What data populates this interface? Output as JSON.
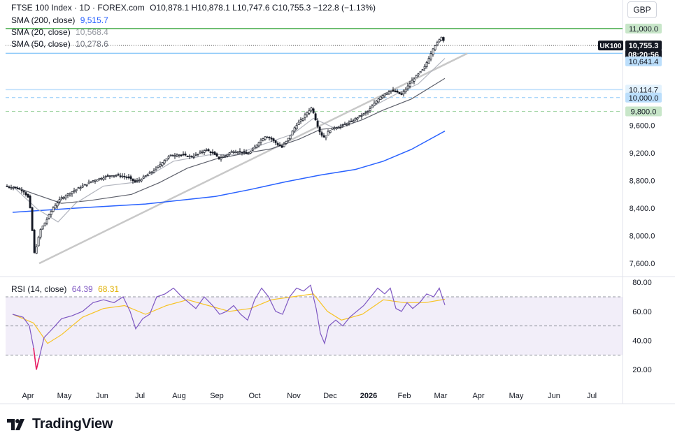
{
  "header": {
    "title": "FTSE 100 Index · 1D · FOREX.com",
    "ohlc": "O10,878.1  H10,878.1  L10,747.6  C10,755.3  −122.8 (−1.13%)",
    "currency": "GBP"
  },
  "indicators": [
    {
      "label": "SMA (200, close)",
      "value": "9,515.7",
      "color": "#2962ff"
    },
    {
      "label": "SMA (20, close)",
      "value": "10,568.4",
      "color": "#b2b5be"
    },
    {
      "label": "SMA (50, close)",
      "value": "10,278.6",
      "color": "#787b86"
    }
  ],
  "rsi_legend": {
    "label": "RSI (14, close)",
    "rsi": "64.39",
    "ma": "68.31",
    "rsi_color": "#7e57c2",
    "ma_color": "#f7c325"
  },
  "price_axis": {
    "ticks": [
      "11,000.0",
      "9,600.0",
      "9,200.0",
      "8,800.0",
      "8,400.0",
      "8,000.0",
      "7,600.0"
    ],
    "tick_values": [
      11000,
      9600,
      9200,
      8800,
      8400,
      8000,
      7600
    ],
    "range": [
      7450,
      11130
    ],
    "labels": [
      {
        "text": "11,000.0",
        "value": 11000,
        "bg": "#c8e6c9",
        "color": "#131722"
      },
      {
        "text": "10,755.3",
        "value": 10755.3,
        "bg": "#131722",
        "color": "#ffffff"
      },
      {
        "text": "08:20:56",
        "value": 10625,
        "bg": "#131722",
        "color": "#ffffff"
      },
      {
        "text": "10,641.4",
        "value": 10525,
        "bg": "#bbdefb",
        "color": "#131722"
      },
      {
        "text": "10,114.7",
        "value": 10114.7,
        "bg": "#e3f2fd",
        "color": "#131722"
      },
      {
        "text": "10,000.0",
        "value": 10000,
        "bg": "#bbdefb",
        "color": "#131722"
      },
      {
        "text": "9,800.0",
        "value": 9800,
        "bg": "#c8e6c9",
        "color": "#131722"
      }
    ],
    "symbol_badge": "UK100"
  },
  "rsi_axis": {
    "ticks": [
      "80.00",
      "60.00",
      "40.00",
      "20.00"
    ],
    "tick_values": [
      80,
      60,
      40,
      20
    ],
    "range": [
      10,
      82
    ]
  },
  "time_axis": {
    "labels": [
      "Apr",
      "May",
      "Jun",
      "Jul",
      "Aug",
      "Sep",
      "Oct",
      "Nov",
      "Dec",
      "2026",
      "Feb",
      "Mar",
      "Apr",
      "May",
      "Jun",
      "Jul"
    ]
  },
  "branding": {
    "name": "TradingView"
  },
  "chart_data": {
    "type": "candlestick",
    "symbol": "FTSE 100 Index",
    "interval": "1D",
    "ylim": [
      7450,
      11130
    ],
    "price_path": [
      {
        "x": 0,
        "y": 8720
      },
      {
        "x": 12,
        "y": 8700
      },
      {
        "x": 25,
        "y": 8660
      },
      {
        "x": 33,
        "y": 8540
      },
      {
        "x": 37,
        "y": 8250
      },
      {
        "x": 40,
        "y": 7720
      },
      {
        "x": 44,
        "y": 7850
      },
      {
        "x": 50,
        "y": 8090
      },
      {
        "x": 58,
        "y": 8220
      },
      {
        "x": 68,
        "y": 8410
      },
      {
        "x": 80,
        "y": 8550
      },
      {
        "x": 95,
        "y": 8640
      },
      {
        "x": 110,
        "y": 8720
      },
      {
        "x": 125,
        "y": 8800
      },
      {
        "x": 140,
        "y": 8850
      },
      {
        "x": 152,
        "y": 8880
      },
      {
        "x": 165,
        "y": 8870
      },
      {
        "x": 175,
        "y": 8840
      },
      {
        "x": 185,
        "y": 8780
      },
      {
        "x": 195,
        "y": 8830
      },
      {
        "x": 205,
        "y": 8900
      },
      {
        "x": 215,
        "y": 8970
      },
      {
        "x": 225,
        "y": 9080
      },
      {
        "x": 235,
        "y": 9160
      },
      {
        "x": 245,
        "y": 9180
      },
      {
        "x": 255,
        "y": 9160
      },
      {
        "x": 265,
        "y": 9150
      },
      {
        "x": 275,
        "y": 9180
      },
      {
        "x": 285,
        "y": 9250
      },
      {
        "x": 295,
        "y": 9200
      },
      {
        "x": 305,
        "y": 9120
      },
      {
        "x": 315,
        "y": 9170
      },
      {
        "x": 325,
        "y": 9230
      },
      {
        "x": 335,
        "y": 9220
      },
      {
        "x": 345,
        "y": 9180
      },
      {
        "x": 352,
        "y": 9230
      },
      {
        "x": 362,
        "y": 9360
      },
      {
        "x": 372,
        "y": 9450
      },
      {
        "x": 380,
        "y": 9400
      },
      {
        "x": 388,
        "y": 9330
      },
      {
        "x": 395,
        "y": 9280
      },
      {
        "x": 405,
        "y": 9420
      },
      {
        "x": 415,
        "y": 9600
      },
      {
        "x": 425,
        "y": 9700
      },
      {
        "x": 432,
        "y": 9800
      },
      {
        "x": 438,
        "y": 9860
      },
      {
        "x": 444,
        "y": 9650
      },
      {
        "x": 450,
        "y": 9480
      },
      {
        "x": 456,
        "y": 9420
      },
      {
        "x": 462,
        "y": 9520
      },
      {
        "x": 470,
        "y": 9570
      },
      {
        "x": 478,
        "y": 9580
      },
      {
        "x": 486,
        "y": 9620
      },
      {
        "x": 494,
        "y": 9650
      },
      {
        "x": 502,
        "y": 9710
      },
      {
        "x": 510,
        "y": 9750
      },
      {
        "x": 518,
        "y": 9800
      },
      {
        "x": 526,
        "y": 9900
      },
      {
        "x": 534,
        "y": 10000
      },
      {
        "x": 542,
        "y": 10060
      },
      {
        "x": 550,
        "y": 10100
      },
      {
        "x": 558,
        "y": 10080
      },
      {
        "x": 566,
        "y": 10040
      },
      {
        "x": 574,
        "y": 10150
      },
      {
        "x": 582,
        "y": 10260
      },
      {
        "x": 590,
        "y": 10340
      },
      {
        "x": 598,
        "y": 10420
      },
      {
        "x": 606,
        "y": 10600
      },
      {
        "x": 612,
        "y": 10740
      },
      {
        "x": 618,
        "y": 10800
      },
      {
        "x": 624,
        "y": 10900
      },
      {
        "x": 628,
        "y": 10755
      }
    ],
    "sma200": [
      {
        "x": 10,
        "y": 8340
      },
      {
        "x": 100,
        "y": 8400
      },
      {
        "x": 200,
        "y": 8460
      },
      {
        "x": 300,
        "y": 8570
      },
      {
        "x": 350,
        "y": 8670
      },
      {
        "x": 400,
        "y": 8780
      },
      {
        "x": 450,
        "y": 8880
      },
      {
        "x": 500,
        "y": 8960
      },
      {
        "x": 540,
        "y": 9080
      },
      {
        "x": 580,
        "y": 9250
      },
      {
        "x": 628,
        "y": 9515.7
      }
    ],
    "sma50": [
      {
        "x": 10,
        "y": 8720
      },
      {
        "x": 40,
        "y": 8610
      },
      {
        "x": 80,
        "y": 8470
      },
      {
        "x": 120,
        "y": 8510
      },
      {
        "x": 180,
        "y": 8600
      },
      {
        "x": 220,
        "y": 8770
      },
      {
        "x": 260,
        "y": 8980
      },
      {
        "x": 300,
        "y": 9110
      },
      {
        "x": 340,
        "y": 9190
      },
      {
        "x": 380,
        "y": 9260
      },
      {
        "x": 420,
        "y": 9400
      },
      {
        "x": 450,
        "y": 9540
      },
      {
        "x": 480,
        "y": 9570
      },
      {
        "x": 510,
        "y": 9680
      },
      {
        "x": 540,
        "y": 9820
      },
      {
        "x": 580,
        "y": 9980
      },
      {
        "x": 628,
        "y": 10278.6
      }
    ],
    "sma20": [
      {
        "x": 10,
        "y": 8720
      },
      {
        "x": 45,
        "y": 8390
      },
      {
        "x": 75,
        "y": 8200
      },
      {
        "x": 100,
        "y": 8470
      },
      {
        "x": 140,
        "y": 8720
      },
      {
        "x": 190,
        "y": 8780
      },
      {
        "x": 240,
        "y": 9080
      },
      {
        "x": 290,
        "y": 9170
      },
      {
        "x": 330,
        "y": 9180
      },
      {
        "x": 370,
        "y": 9330
      },
      {
        "x": 410,
        "y": 9470
      },
      {
        "x": 440,
        "y": 9700
      },
      {
        "x": 470,
        "y": 9560
      },
      {
        "x": 500,
        "y": 9680
      },
      {
        "x": 530,
        "y": 9900
      },
      {
        "x": 560,
        "y": 10060
      },
      {
        "x": 590,
        "y": 10200
      },
      {
        "x": 628,
        "y": 10568.4
      }
    ],
    "trendline": [
      {
        "x": 48,
        "y": 7600
      },
      {
        "x": 660,
        "y": 10640
      }
    ],
    "horizontal_levels": [
      {
        "value": 11000,
        "color": "#4caf50",
        "style": "solid"
      },
      {
        "value": 10755.3,
        "color": "#555555",
        "style": "dotted"
      },
      {
        "value": 10641.4,
        "color": "#90caf9",
        "style": "solid"
      },
      {
        "value": 10114.7,
        "color": "#bbdefb",
        "style": "solid"
      },
      {
        "value": 10000,
        "color": "#90caf9",
        "style": "dashed"
      },
      {
        "value": 9800,
        "color": "#a5d6a7",
        "style": "dashed"
      }
    ],
    "rsi": {
      "ylim": [
        10,
        82
      ],
      "bands": [
        70,
        50,
        30
      ],
      "values": [
        {
          "x": 10,
          "y": 58
        },
        {
          "x": 25,
          "y": 56
        },
        {
          "x": 34,
          "y": 50
        },
        {
          "x": 40,
          "y": 35
        },
        {
          "x": 44,
          "y": 20
        },
        {
          "x": 48,
          "y": 28
        },
        {
          "x": 55,
          "y": 42
        },
        {
          "x": 65,
          "y": 47
        },
        {
          "x": 80,
          "y": 55
        },
        {
          "x": 95,
          "y": 57
        },
        {
          "x": 110,
          "y": 60
        },
        {
          "x": 125,
          "y": 66
        },
        {
          "x": 140,
          "y": 68
        },
        {
          "x": 155,
          "y": 66
        },
        {
          "x": 168,
          "y": 70
        },
        {
          "x": 178,
          "y": 60
        },
        {
          "x": 186,
          "y": 48
        },
        {
          "x": 196,
          "y": 55
        },
        {
          "x": 206,
          "y": 58
        },
        {
          "x": 216,
          "y": 70
        },
        {
          "x": 228,
          "y": 72
        },
        {
          "x": 240,
          "y": 76
        },
        {
          "x": 252,
          "y": 70
        },
        {
          "x": 262,
          "y": 66
        },
        {
          "x": 272,
          "y": 62
        },
        {
          "x": 284,
          "y": 70
        },
        {
          "x": 296,
          "y": 64
        },
        {
          "x": 306,
          "y": 58
        },
        {
          "x": 316,
          "y": 60
        },
        {
          "x": 326,
          "y": 64
        },
        {
          "x": 336,
          "y": 58
        },
        {
          "x": 346,
          "y": 54
        },
        {
          "x": 356,
          "y": 68
        },
        {
          "x": 366,
          "y": 76
        },
        {
          "x": 376,
          "y": 70
        },
        {
          "x": 386,
          "y": 60
        },
        {
          "x": 396,
          "y": 58
        },
        {
          "x": 406,
          "y": 70
        },
        {
          "x": 416,
          "y": 76
        },
        {
          "x": 426,
          "y": 74
        },
        {
          "x": 436,
          "y": 78
        },
        {
          "x": 444,
          "y": 62
        },
        {
          "x": 450,
          "y": 45
        },
        {
          "x": 456,
          "y": 38
        },
        {
          "x": 462,
          "y": 50
        },
        {
          "x": 472,
          "y": 54
        },
        {
          "x": 482,
          "y": 50
        },
        {
          "x": 492,
          "y": 56
        },
        {
          "x": 502,
          "y": 60
        },
        {
          "x": 512,
          "y": 64
        },
        {
          "x": 522,
          "y": 70
        },
        {
          "x": 532,
          "y": 76
        },
        {
          "x": 542,
          "y": 72
        },
        {
          "x": 550,
          "y": 76
        },
        {
          "x": 558,
          "y": 62
        },
        {
          "x": 566,
          "y": 60
        },
        {
          "x": 574,
          "y": 66
        },
        {
          "x": 582,
          "y": 62
        },
        {
          "x": 592,
          "y": 66
        },
        {
          "x": 602,
          "y": 72
        },
        {
          "x": 612,
          "y": 70
        },
        {
          "x": 620,
          "y": 76
        },
        {
          "x": 628,
          "y": 64.39
        }
      ],
      "ma": [
        {
          "x": 10,
          "y": 58
        },
        {
          "x": 40,
          "y": 52
        },
        {
          "x": 60,
          "y": 38
        },
        {
          "x": 80,
          "y": 44
        },
        {
          "x": 110,
          "y": 56
        },
        {
          "x": 140,
          "y": 62
        },
        {
          "x": 170,
          "y": 64
        },
        {
          "x": 200,
          "y": 58
        },
        {
          "x": 230,
          "y": 64
        },
        {
          "x": 260,
          "y": 68
        },
        {
          "x": 290,
          "y": 64
        },
        {
          "x": 320,
          "y": 60
        },
        {
          "x": 350,
          "y": 62
        },
        {
          "x": 380,
          "y": 68
        },
        {
          "x": 410,
          "y": 70
        },
        {
          "x": 440,
          "y": 72
        },
        {
          "x": 460,
          "y": 60
        },
        {
          "x": 480,
          "y": 54
        },
        {
          "x": 510,
          "y": 58
        },
        {
          "x": 540,
          "y": 68
        },
        {
          "x": 570,
          "y": 66
        },
        {
          "x": 600,
          "y": 66
        },
        {
          "x": 628,
          "y": 68.31
        }
      ]
    }
  }
}
